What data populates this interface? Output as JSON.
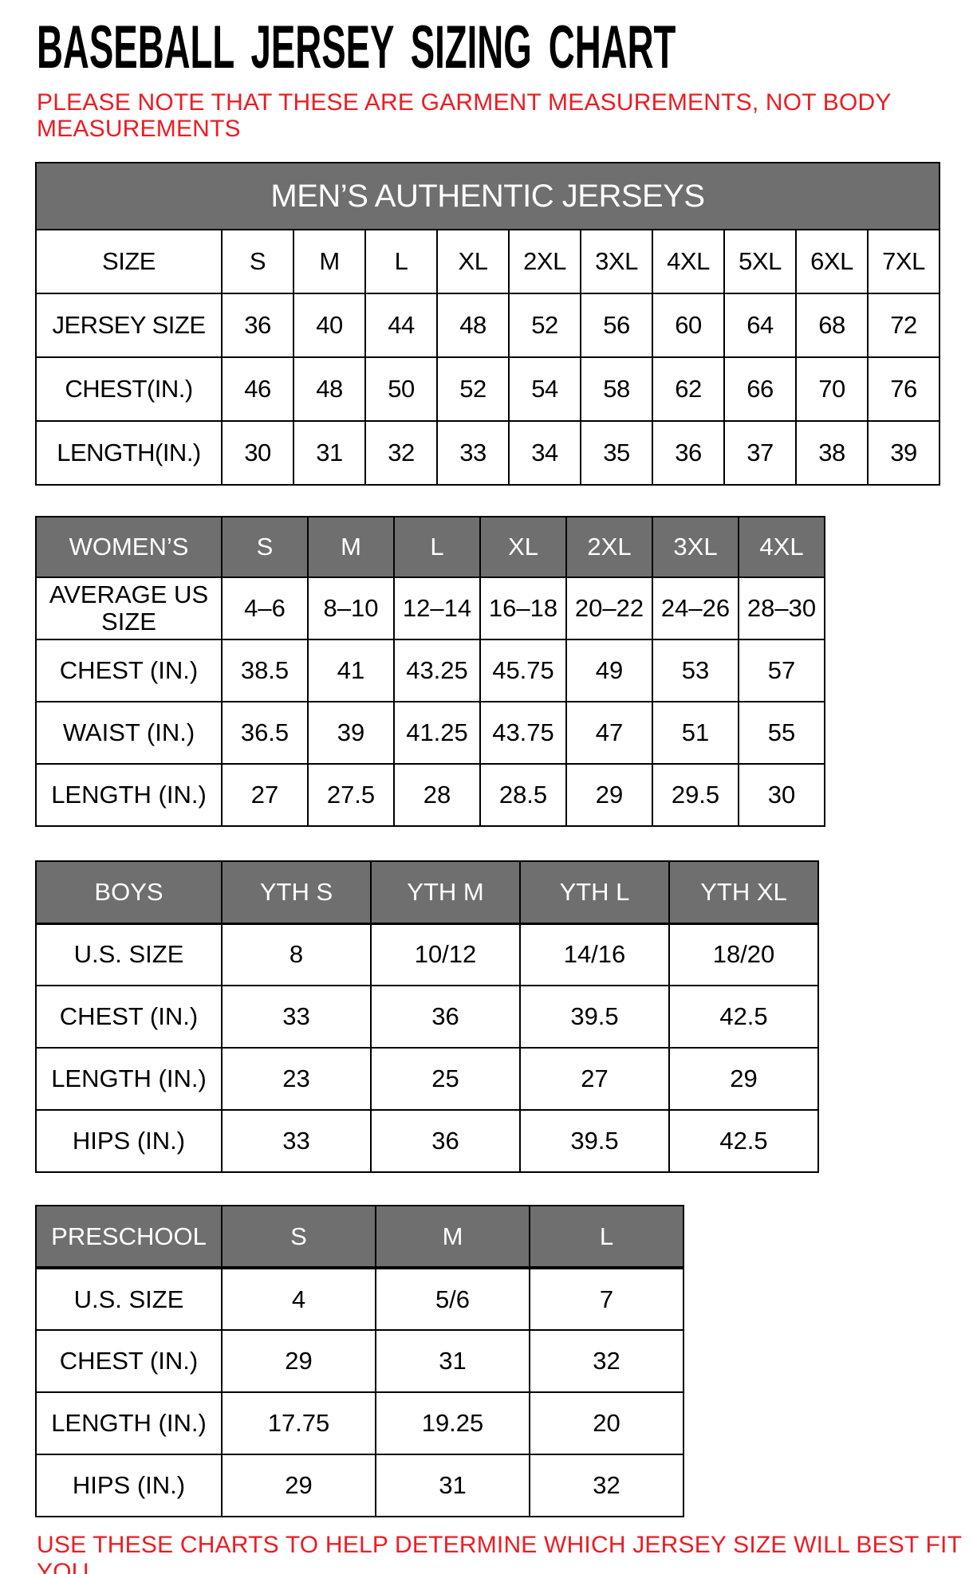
{
  "page": {
    "title": "BASEBALL JERSEY SIZING CHART",
    "note": "PLEASE NOTE THAT THESE ARE GARMENT MEASUREMENTS, NOT BODY MEASUREMENTS",
    "footer": "USE THESE CHARTS TO HELP DETERMINE WHICH JERSEY SIZE WILL BEST FIT YOU."
  },
  "colors": {
    "accent_red": "#ed1c24",
    "header_gray": "#6f6f6f",
    "header_text": "#ffffff",
    "border": "#000000"
  },
  "tables": [
    {
      "name": "mens",
      "banner": "MEN’S AUTHENTIC JERSEYS",
      "header": [
        "SIZE",
        "S",
        "M",
        "L",
        "XL",
        "2XL",
        "3XL",
        "4XL",
        "5XL",
        "6XL",
        "7XL"
      ],
      "rows": [
        {
          "label": "JERSEY SIZE",
          "values": [
            "36",
            "40",
            "44",
            "48",
            "52",
            "56",
            "60",
            "64",
            "68",
            "72"
          ]
        },
        {
          "label": "CHEST(IN.)",
          "values": [
            "46",
            "48",
            "50",
            "52",
            "54",
            "58",
            "62",
            "66",
            "70",
            "76"
          ]
        },
        {
          "label": "LENGTH(IN.)",
          "values": [
            "30",
            "31",
            "32",
            "33",
            "34",
            "35",
            "36",
            "37",
            "38",
            "39"
          ]
        }
      ]
    },
    {
      "name": "womens",
      "header": [
        "WOMEN’S",
        "S",
        "M",
        "L",
        "XL",
        "2XL",
        "3XL",
        "4XL"
      ],
      "rows": [
        {
          "label": "AVERAGE US SIZE",
          "values": [
            "4–6",
            "8–10",
            "12–14",
            "16–18",
            "20–22",
            "24–26",
            "28–30"
          ]
        },
        {
          "label": "CHEST (IN.)",
          "values": [
            "38.5",
            "41",
            "43.25",
            "45.75",
            "49",
            "53",
            "57"
          ]
        },
        {
          "label": "WAIST (IN.)",
          "values": [
            "36.5",
            "39",
            "41.25",
            "43.75",
            "47",
            "51",
            "55"
          ]
        },
        {
          "label": "LENGTH (IN.)",
          "values": [
            "27",
            "27.5",
            "28",
            "28.5",
            "29",
            "29.5",
            "30"
          ]
        }
      ]
    },
    {
      "name": "boys",
      "header": [
        "BOYS",
        "YTH S",
        "YTH M",
        "YTH L",
        "YTH XL"
      ],
      "rows": [
        {
          "label": "U.S. SIZE",
          "values": [
            "8",
            "10/12",
            "14/16",
            "18/20"
          ]
        },
        {
          "label": "CHEST (IN.)",
          "values": [
            "33",
            "36",
            "39.5",
            "42.5"
          ]
        },
        {
          "label": "LENGTH (IN.)",
          "values": [
            "23",
            "25",
            "27",
            "29"
          ]
        },
        {
          "label": "HIPS (IN.)",
          "values": [
            "33",
            "36",
            "39.5",
            "42.5"
          ]
        }
      ]
    },
    {
      "name": "preschool",
      "header": [
        "PRESCHOOL",
        "S",
        "M",
        "L"
      ],
      "rows": [
        {
          "label": "U.S. SIZE",
          "values": [
            "4",
            "5/6",
            "7"
          ]
        },
        {
          "label": "CHEST (IN.)",
          "values": [
            "29",
            "31",
            "32"
          ]
        },
        {
          "label": "LENGTH (IN.)",
          "values": [
            "17.75",
            "19.25",
            "20"
          ]
        },
        {
          "label": "HIPS (IN.)",
          "values": [
            "29",
            "31",
            "32"
          ]
        }
      ]
    }
  ]
}
